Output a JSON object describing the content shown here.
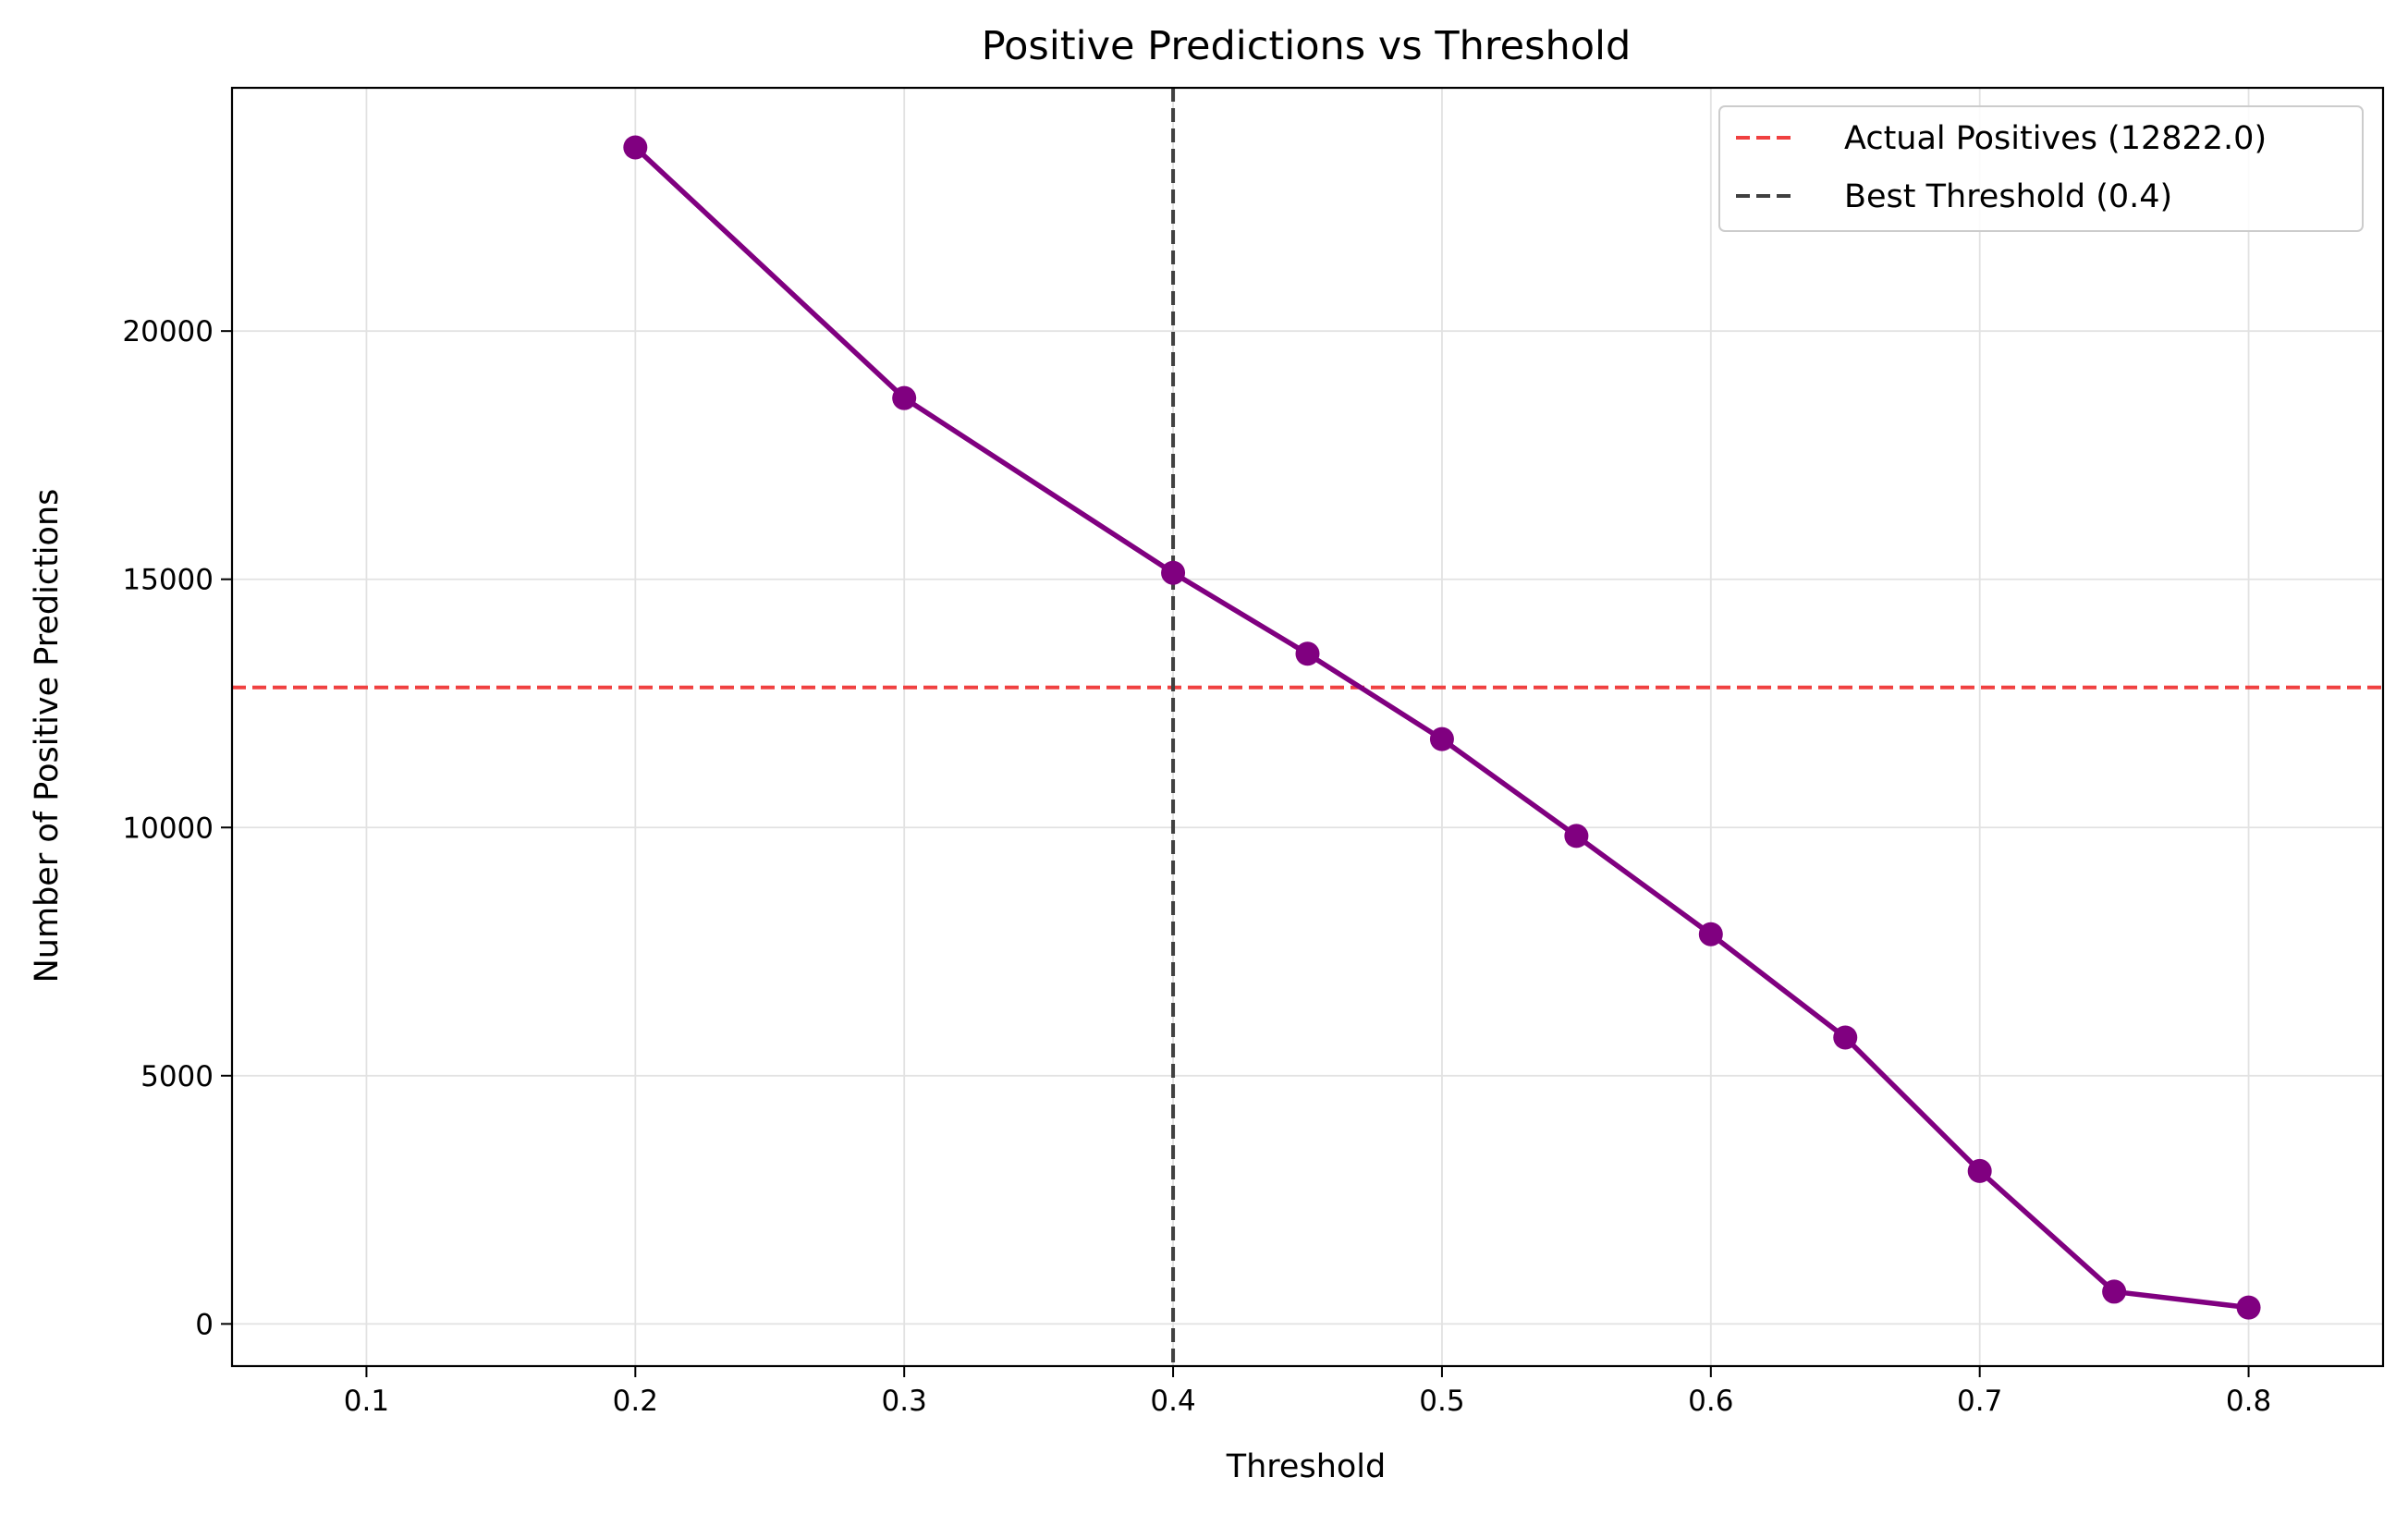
{
  "chart_data": {
    "type": "line",
    "title": "Positive Predictions vs Threshold",
    "xlabel": "Threshold",
    "ylabel": "Number of Positive Predictions",
    "xlim": [
      0.05,
      0.85
    ],
    "ylim": [
      -850,
      24900
    ],
    "x_ticks": [
      0.1,
      0.2,
      0.3,
      0.4,
      0.5,
      0.6,
      0.7,
      0.8
    ],
    "y_ticks": [
      0,
      5000,
      10000,
      15000,
      20000
    ],
    "x_tick_labels": [
      "0.1",
      "0.2",
      "0.3",
      "0.4",
      "0.5",
      "0.6",
      "0.7",
      "0.8"
    ],
    "y_tick_labels": [
      "0",
      "5000",
      "10000",
      "15000",
      "20000"
    ],
    "grid": true,
    "legend_position": "top-right",
    "series": [
      {
        "color": "#800080",
        "marker": "circle",
        "x": [
          0.2,
          0.3,
          0.4,
          0.45,
          0.5,
          0.55,
          0.6,
          0.65,
          0.7,
          0.75,
          0.8
        ],
        "y": [
          23700,
          18650,
          15130,
          13500,
          11780,
          9830,
          7850,
          5770,
          3080,
          650,
          330
        ]
      }
    ],
    "reference_lines": [
      {
        "orientation": "horizontal",
        "value": 12822.0,
        "color": "#f04040",
        "style": "dashed",
        "label": "Actual Positives (12822.0)"
      },
      {
        "orientation": "vertical",
        "value": 0.4,
        "color": "#404040",
        "style": "dashed",
        "label": "Best Threshold (0.4)"
      }
    ],
    "legend": [
      "Actual Positives (12822.0)",
      "Best Threshold (0.4)"
    ]
  }
}
